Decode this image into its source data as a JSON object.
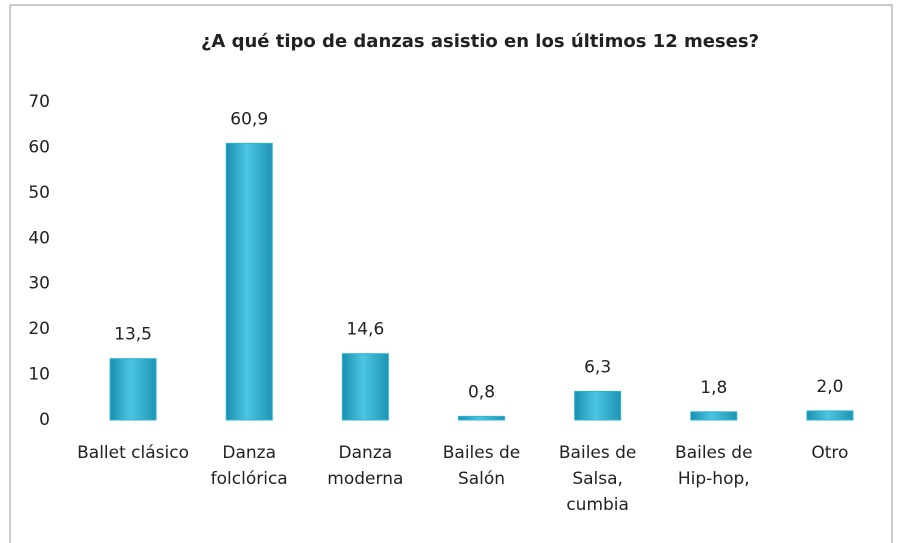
{
  "chart_data": {
    "type": "bar",
    "title": "¿A qué tipo de danzas asistio en los últimos 12 meses?",
    "categories": [
      "Ballet clásico",
      "Danza folclórica",
      "Danza moderna",
      "Bailes de Salón",
      "Bailes de Salsa, cumbia",
      "Bailes de Hip-hop,",
      "Otro"
    ],
    "values": [
      13.5,
      60.9,
      14.6,
      0.8,
      6.3,
      1.8,
      2.0
    ],
    "value_labels": [
      "13,5",
      "60,9",
      "14,6",
      "0,8",
      "6,3",
      "1,8",
      "2,0"
    ],
    "color": "#2fb3d3",
    "ylim": [
      0,
      70
    ],
    "yticks": [
      0,
      10,
      20,
      30,
      40,
      50,
      60,
      70
    ],
    "grid": false
  }
}
